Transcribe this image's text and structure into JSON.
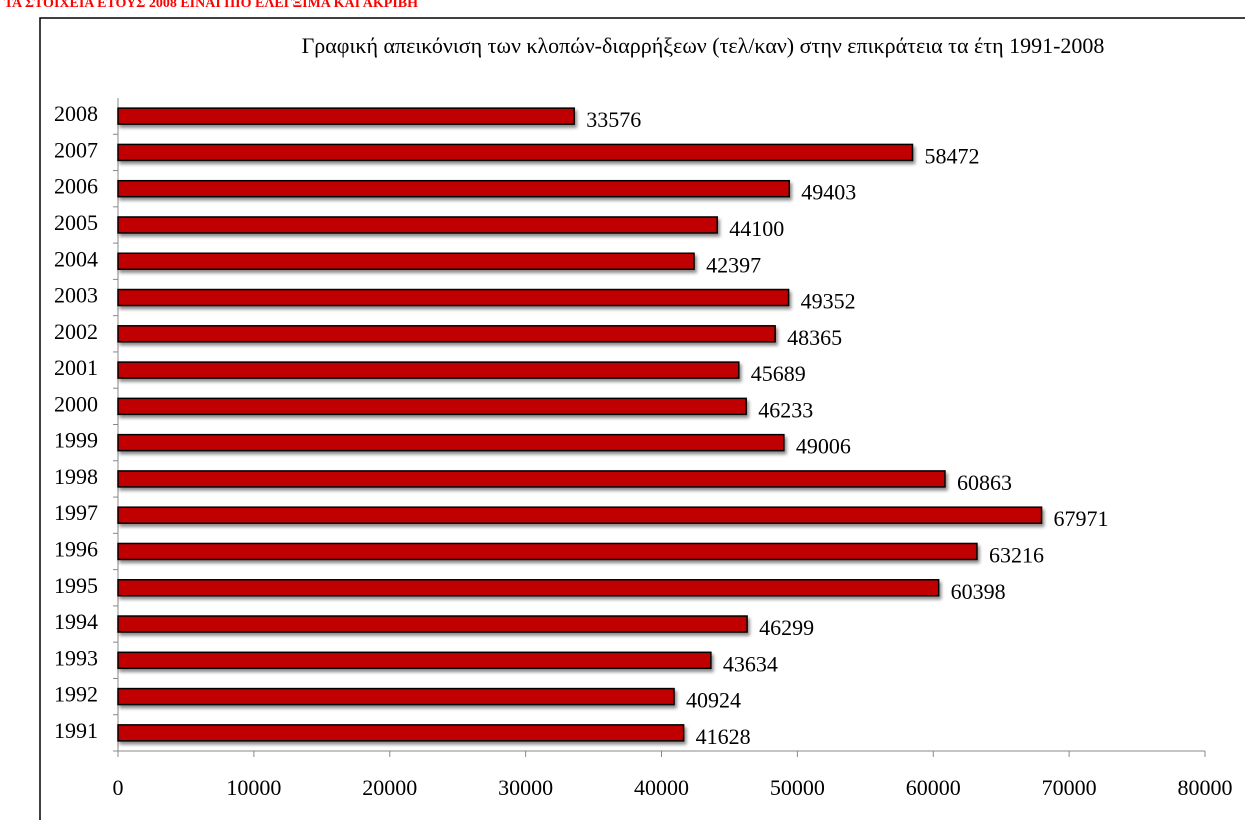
{
  "note": "ΤΑ ΣΤΟΙΧΕΙΑ ΕΤΟΥΣ 2008 ΕΙΝΑΙ ΠΙΟ ΕΛΕΓΞΙΜΑ ΚΑΙ ΑΚΡΙΒΗ",
  "chart_data": {
    "type": "bar",
    "orientation": "horizontal",
    "title": "Γραφική απεικόνιση των κλοπών-διαρρήξεων (τελ/καν) στην επικράτεια τα έτη 1991-2008",
    "categories": [
      "1991",
      "1992",
      "1993",
      "1994",
      "1995",
      "1996",
      "1997",
      "1998",
      "1999",
      "2000",
      "2001",
      "2002",
      "2003",
      "2004",
      "2005",
      "2006",
      "2007",
      "2008"
    ],
    "values": [
      41628,
      40924,
      43634,
      46299,
      60398,
      63216,
      67971,
      60863,
      49006,
      46233,
      45689,
      48365,
      49352,
      42397,
      44100,
      49403,
      58472,
      33576
    ],
    "color": "#c00000",
    "xlim": [
      0,
      80000
    ],
    "xticks": [
      0,
      10000,
      20000,
      30000,
      40000,
      50000,
      60000,
      70000,
      80000
    ],
    "grid": false
  }
}
